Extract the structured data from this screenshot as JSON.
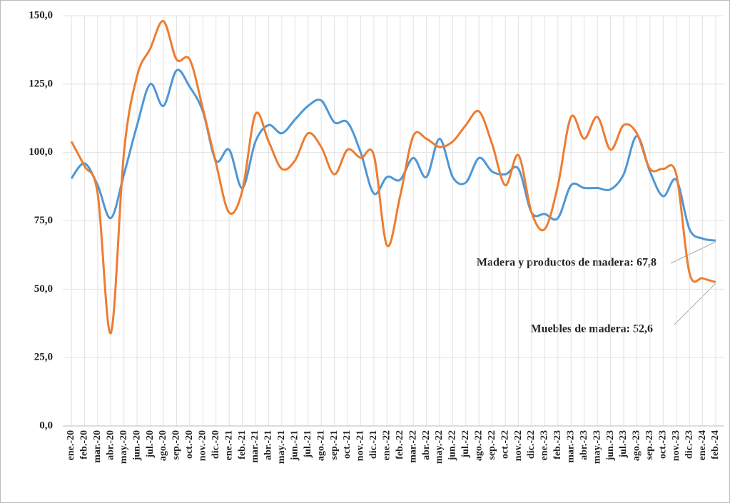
{
  "chart_data": {
    "type": "line",
    "categories": [
      "ene.-20",
      "feb.-20",
      "mar.-20",
      "abr.-20",
      "may.-20",
      "jun.-20",
      "jul.-20",
      "ago.-20",
      "sep.-20",
      "oct.-20",
      "nov.-20",
      "dic.-20",
      "ene.-21",
      "feb.-21",
      "mar.-21",
      "abr.-21",
      "may.-21",
      "jun.-21",
      "jul.-21",
      "ago.-21",
      "sep.-21",
      "oct.-21",
      "nov.-21",
      "dic.-21",
      "ene.-22",
      "feb.-22",
      "mar.-22",
      "abr.-22",
      "may.-22",
      "jun.-22",
      "jul.-22",
      "ago.-22",
      "sep.-22",
      "oct.-22",
      "nov.-22",
      "dic.-22",
      "ene.-23",
      "feb.-23",
      "mar.-23",
      "abr.-23",
      "may.-23",
      "jun.-23",
      "jul.-23",
      "ago.-23",
      "sep.-23",
      "oct.-23",
      "nov.-23",
      "dic.-23",
      "ene.-24",
      "feb.-24"
    ],
    "series": [
      {
        "name": "Madera y productos de madera",
        "color": "#4f97d6",
        "values": [
          90.5,
          96,
          88,
          76,
          92,
          110,
          125,
          117,
          130,
          124,
          115,
          97,
          101,
          87,
          104,
          110,
          107,
          112,
          117,
          119,
          111,
          111,
          100,
          85,
          91,
          90,
          98,
          91,
          105,
          91,
          89,
          98,
          93,
          92,
          94,
          78,
          77.5,
          76,
          88,
          87,
          87,
          86.5,
          92,
          106,
          93,
          84,
          90,
          72,
          68.5,
          67.8
        ]
      },
      {
        "name": "Muebles de madera",
        "color": "#ed7d31",
        "values": [
          104,
          95,
          85,
          34,
          100,
          128,
          138,
          148,
          134,
          134,
          116,
          96,
          78,
          86,
          114,
          104,
          94,
          97,
          107,
          102,
          92,
          101,
          98,
          99,
          66,
          84,
          106,
          105,
          102,
          104,
          110,
          115,
          103,
          88,
          99,
          78,
          72,
          88,
          113,
          105,
          113,
          101,
          110,
          107,
          94,
          94,
          92,
          56,
          54,
          52.6
        ]
      }
    ],
    "annotations": [
      "Madera y productos de madera: 67,8",
      "Muebles de madera: 52,6"
    ],
    "ylim": [
      0,
      150
    ],
    "yticks": [
      {
        "value": 0,
        "label": "0,0"
      },
      {
        "value": 25,
        "label": "25,0"
      },
      {
        "value": 50,
        "label": "50,0"
      },
      {
        "value": 75,
        "label": "75,0"
      },
      {
        "value": 100,
        "label": "100,0"
      },
      {
        "value": 125,
        "label": "125,0"
      },
      {
        "value": 150,
        "label": "150,0"
      }
    ],
    "grid": true
  }
}
